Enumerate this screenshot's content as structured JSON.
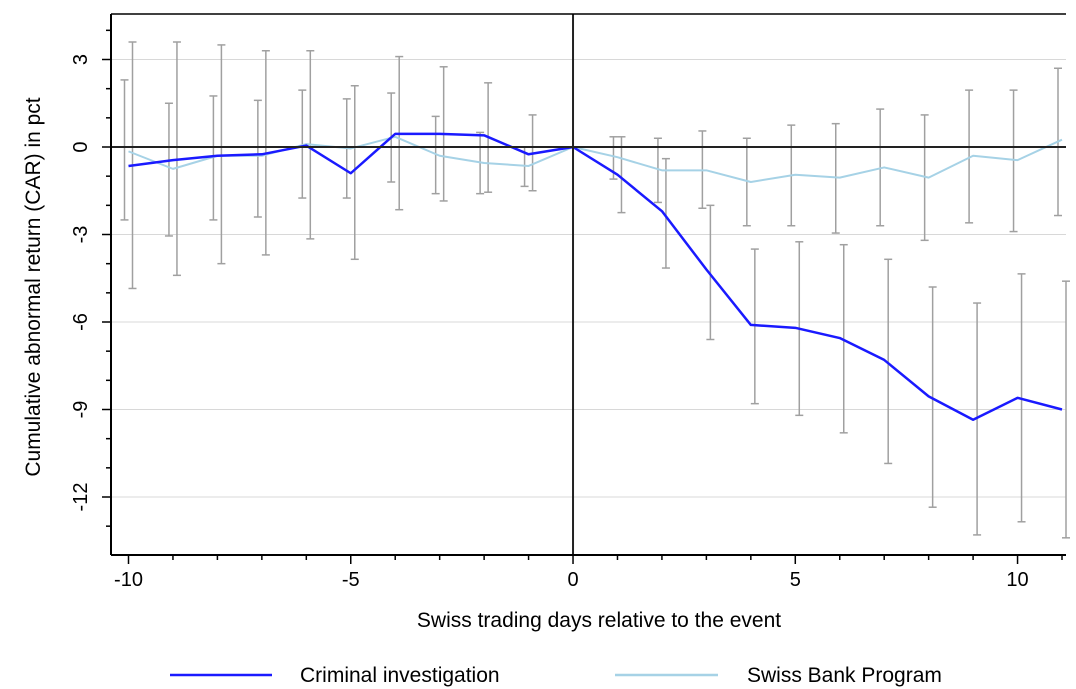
{
  "chart_data": {
    "type": "line",
    "title": "",
    "xlabel": "Swiss trading days relative to the event",
    "ylabel": "Cumulative abnormal return (CAR) in pct",
    "xlim": [
      -10,
      11
    ],
    "ylim": [
      -13.5,
      4.5
    ],
    "xticks": [
      -10,
      -5,
      0,
      5,
      10
    ],
    "yticks": [
      3,
      0,
      -3,
      -6,
      -9,
      -12
    ],
    "grid": "horizontal",
    "legend_position": "bottom",
    "x": [
      -10,
      -9,
      -8,
      -7,
      -6,
      -5,
      -4,
      -3,
      -2,
      -1,
      0,
      1,
      2,
      3,
      4,
      5,
      6,
      7,
      8,
      9,
      10,
      11
    ],
    "series": [
      {
        "name": "Criminal investigation",
        "color": "#1a1aff",
        "values": [
          -0.65,
          -0.45,
          -0.3,
          -0.25,
          0.05,
          -0.9,
          0.45,
          0.45,
          0.4,
          -0.25,
          0.0,
          -0.95,
          -2.2,
          -4.2,
          -6.1,
          -6.2,
          -6.55,
          -7.3,
          -8.55,
          -9.35,
          -8.6,
          -9.0
        ],
        "ci_low": [
          -4.85,
          -4.4,
          -4.0,
          -3.7,
          -3.15,
          -3.85,
          -2.15,
          -1.85,
          -1.55,
          -1.5,
          0.0,
          -2.25,
          -4.15,
          -6.6,
          -8.8,
          -9.2,
          -9.8,
          -10.85,
          -12.35,
          -13.3,
          -12.85,
          -13.4
        ],
        "ci_high": [
          3.6,
          3.6,
          3.5,
          3.3,
          3.3,
          2.1,
          3.1,
          2.75,
          2.2,
          1.1,
          0.0,
          0.35,
          -0.4,
          -2.0,
          -3.5,
          -3.25,
          -3.35,
          -3.85,
          -4.8,
          -5.35,
          -4.35,
          -4.6
        ]
      },
      {
        "name": "Swiss Bank Program",
        "color": "#a6d2e6",
        "values": [
          -0.15,
          -0.75,
          -0.3,
          -0.3,
          0.1,
          -0.05,
          0.35,
          -0.3,
          -0.55,
          -0.65,
          0.0,
          -0.35,
          -0.8,
          -0.8,
          -1.2,
          -0.95,
          -1.05,
          -0.7,
          -1.05,
          -0.3,
          -0.45,
          0.25
        ],
        "ci_low": [
          -2.5,
          -3.05,
          -2.5,
          -2.4,
          -1.75,
          -1.75,
          -1.2,
          -1.6,
          -1.6,
          -1.35,
          0.0,
          -1.1,
          -1.9,
          -2.1,
          -2.7,
          -2.7,
          -2.95,
          -2.7,
          -3.2,
          -2.6,
          -2.9,
          -2.35
        ],
        "ci_high": [
          2.3,
          1.5,
          1.75,
          1.6,
          1.95,
          1.65,
          1.85,
          1.05,
          0.5,
          0.0,
          0.0,
          0.35,
          0.3,
          0.55,
          0.3,
          0.75,
          0.8,
          1.3,
          1.1,
          1.95,
          1.95,
          2.7
        ]
      }
    ]
  },
  "colors": {
    "error_bar": "#a0a0a0",
    "grid": "#d8d8d8",
    "axis": "#000000",
    "zero_line": "#222222"
  }
}
